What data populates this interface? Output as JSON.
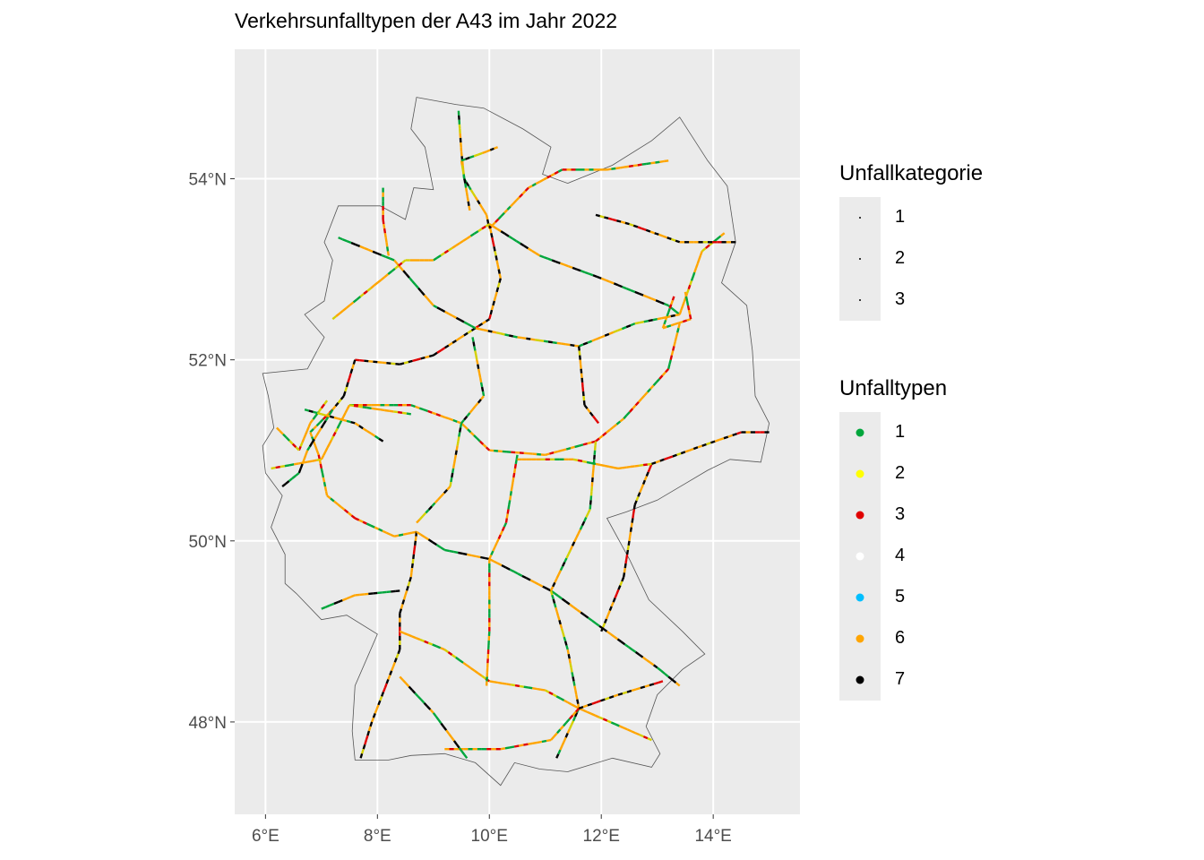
{
  "title": "Verkehrsunfalltypen der A43 im Jahr 2022",
  "map": {
    "x_ticks": [
      {
        "value": 6,
        "label": "6°E"
      },
      {
        "value": 8,
        "label": "8°E"
      },
      {
        "value": 10,
        "label": "10°E"
      },
      {
        "value": 12,
        "label": "12°E"
      },
      {
        "value": 14,
        "label": "14°E"
      }
    ],
    "y_ticks": [
      {
        "value": 48,
        "label": "48°N"
      },
      {
        "value": 50,
        "label": "50°N"
      },
      {
        "value": 52,
        "label": "52°N"
      },
      {
        "value": 54,
        "label": "54°N"
      }
    ],
    "xlim": [
      5.45,
      15.55
    ],
    "ylim": [
      46.98,
      55.43
    ],
    "grid": true,
    "panel_color": "#ebebeb",
    "border_color": "#555555",
    "border_outline": [
      [
        8.7,
        54.9
      ],
      [
        9.4,
        54.82
      ],
      [
        9.9,
        54.78
      ],
      [
        10.6,
        54.55
      ],
      [
        11.1,
        54.35
      ],
      [
        10.95,
        54.05
      ],
      [
        11.4,
        53.95
      ],
      [
        12.2,
        54.15
      ],
      [
        12.9,
        54.42
      ],
      [
        13.4,
        54.68
      ],
      [
        13.9,
        54.2
      ],
      [
        14.25,
        53.92
      ],
      [
        14.4,
        53.3
      ],
      [
        14.15,
        52.85
      ],
      [
        14.6,
        52.6
      ],
      [
        14.7,
        52.1
      ],
      [
        14.75,
        51.6
      ],
      [
        15.0,
        51.3
      ],
      [
        14.85,
        50.87
      ],
      [
        14.3,
        50.9
      ],
      [
        13.9,
        50.78
      ],
      [
        13.0,
        50.45
      ],
      [
        12.45,
        50.32
      ],
      [
        12.1,
        50.25
      ],
      [
        12.5,
        49.8
      ],
      [
        12.85,
        49.35
      ],
      [
        13.45,
        49.0
      ],
      [
        13.85,
        48.75
      ],
      [
        13.45,
        48.58
      ],
      [
        13.0,
        48.3
      ],
      [
        12.8,
        47.95
      ],
      [
        13.05,
        47.65
      ],
      [
        12.9,
        47.5
      ],
      [
        12.2,
        47.6
      ],
      [
        11.4,
        47.45
      ],
      [
        10.9,
        47.48
      ],
      [
        10.45,
        47.55
      ],
      [
        10.2,
        47.3
      ],
      [
        9.75,
        47.55
      ],
      [
        9.2,
        47.65
      ],
      [
        8.6,
        47.63
      ],
      [
        8.2,
        47.58
      ],
      [
        7.6,
        47.58
      ],
      [
        7.55,
        47.9
      ],
      [
        7.6,
        48.4
      ],
      [
        8.0,
        48.97
      ],
      [
        7.45,
        49.18
      ],
      [
        7.0,
        49.13
      ],
      [
        6.55,
        49.42
      ],
      [
        6.35,
        49.53
      ],
      [
        6.35,
        49.85
      ],
      [
        6.1,
        50.15
      ],
      [
        6.3,
        50.5
      ],
      [
        6.0,
        50.75
      ],
      [
        5.95,
        51.05
      ],
      [
        6.15,
        51.25
      ],
      [
        6.05,
        51.6
      ],
      [
        5.95,
        51.85
      ],
      [
        6.75,
        51.9
      ],
      [
        7.05,
        52.25
      ],
      [
        6.7,
        52.5
      ],
      [
        7.05,
        52.65
      ],
      [
        7.2,
        53.1
      ],
      [
        7.05,
        53.3
      ],
      [
        7.3,
        53.7
      ],
      [
        8.05,
        53.7
      ],
      [
        8.5,
        53.55
      ],
      [
        8.65,
        53.9
      ],
      [
        9.0,
        53.88
      ],
      [
        8.85,
        54.35
      ],
      [
        8.6,
        54.55
      ],
      [
        8.7,
        54.9
      ]
    ],
    "road_colors": [
      "#00a63c",
      "#ffa500",
      "#ffa500",
      "#d4d000",
      "#000000",
      "#ffa500",
      "#00a63c",
      "#e00000",
      "#ffa500",
      "#000000"
    ],
    "roads": [
      [
        [
          9.45,
          54.75
        ],
        [
          9.5,
          54.3
        ],
        [
          9.55,
          54.0
        ],
        [
          9.95,
          53.6
        ],
        [
          10.0,
          53.45
        ]
      ],
      [
        [
          10.0,
          53.45
        ],
        [
          10.7,
          53.9
        ],
        [
          11.3,
          54.1
        ],
        [
          12.1,
          54.1
        ],
        [
          13.2,
          54.2
        ]
      ],
      [
        [
          10.0,
          53.5
        ],
        [
          10.2,
          52.9
        ],
        [
          10.0,
          52.45
        ],
        [
          9.75,
          52.35
        ]
      ],
      [
        [
          10.0,
          53.5
        ],
        [
          10.9,
          53.15
        ],
        [
          12.0,
          52.9
        ],
        [
          13.2,
          52.6
        ],
        [
          13.4,
          52.5
        ]
      ],
      [
        [
          13.4,
          52.5
        ],
        [
          13.8,
          53.2
        ],
        [
          14.2,
          53.4
        ]
      ],
      [
        [
          13.4,
          52.5
        ],
        [
          12.6,
          52.4
        ],
        [
          11.6,
          52.15
        ],
        [
          10.5,
          52.25
        ],
        [
          9.75,
          52.35
        ]
      ],
      [
        [
          13.4,
          52.4
        ],
        [
          13.2,
          51.9
        ],
        [
          12.4,
          51.35
        ],
        [
          11.9,
          51.1
        ],
        [
          11.0,
          50.95
        ],
        [
          10.0,
          51.0
        ],
        [
          9.5,
          51.3
        ],
        [
          8.6,
          51.5
        ],
        [
          7.5,
          51.5
        ]
      ],
      [
        [
          9.75,
          52.35
        ],
        [
          9.0,
          52.05
        ],
        [
          8.4,
          51.95
        ],
        [
          7.6,
          52.0
        ],
        [
          7.4,
          51.6
        ],
        [
          7.2,
          51.45
        ]
      ],
      [
        [
          9.75,
          52.35
        ],
        [
          9.0,
          52.6
        ],
        [
          8.3,
          53.1
        ],
        [
          7.3,
          53.35
        ]
      ],
      [
        [
          10.0,
          53.5
        ],
        [
          9.0,
          53.1
        ],
        [
          8.5,
          53.1
        ],
        [
          7.2,
          52.45
        ]
      ],
      [
        [
          9.7,
          52.25
        ],
        [
          9.9,
          51.6
        ],
        [
          9.5,
          51.3
        ],
        [
          9.3,
          50.6
        ],
        [
          8.7,
          50.2
        ]
      ],
      [
        [
          7.2,
          51.45
        ],
        [
          6.8,
          51.2
        ],
        [
          6.95,
          50.95
        ],
        [
          7.1,
          50.5
        ],
        [
          7.6,
          50.25
        ],
        [
          8.3,
          50.05
        ],
        [
          8.7,
          50.1
        ]
      ],
      [
        [
          8.7,
          50.1
        ],
        [
          8.6,
          49.6
        ],
        [
          8.4,
          49.2
        ],
        [
          8.4,
          48.8
        ],
        [
          7.9,
          48.0
        ],
        [
          7.7,
          47.6
        ]
      ],
      [
        [
          8.7,
          50.1
        ],
        [
          9.2,
          49.9
        ],
        [
          10.0,
          49.8
        ],
        [
          11.1,
          49.45
        ],
        [
          12.1,
          49.0
        ],
        [
          13.0,
          48.6
        ],
        [
          13.4,
          48.4
        ]
      ],
      [
        [
          8.4,
          49.0
        ],
        [
          9.2,
          48.8
        ],
        [
          10.0,
          48.45
        ],
        [
          11.0,
          48.35
        ],
        [
          11.6,
          48.15
        ],
        [
          12.9,
          47.8
        ]
      ],
      [
        [
          11.6,
          48.15
        ],
        [
          11.4,
          48.8
        ],
        [
          11.1,
          49.45
        ],
        [
          11.8,
          50.35
        ],
        [
          11.9,
          51.1
        ]
      ],
      [
        [
          9.95,
          48.4
        ],
        [
          10.0,
          49.0
        ],
        [
          10.0,
          49.8
        ],
        [
          10.3,
          50.2
        ],
        [
          10.5,
          50.95
        ]
      ],
      [
        [
          12.0,
          49.0
        ],
        [
          12.4,
          49.6
        ],
        [
          12.6,
          50.4
        ],
        [
          12.9,
          50.85
        ],
        [
          13.8,
          51.05
        ],
        [
          14.5,
          51.2
        ],
        [
          15.0,
          51.2
        ]
      ],
      [
        [
          7.0,
          49.25
        ],
        [
          7.6,
          49.4
        ],
        [
          8.4,
          49.45
        ]
      ],
      [
        [
          6.1,
          50.8
        ],
        [
          7.0,
          50.9
        ],
        [
          7.5,
          51.5
        ],
        [
          8.6,
          51.4
        ]
      ],
      [
        [
          11.6,
          48.15
        ],
        [
          11.2,
          47.6
        ]
      ],
      [
        [
          11.6,
          48.15
        ],
        [
          11.1,
          47.8
        ],
        [
          10.2,
          47.7
        ],
        [
          9.2,
          47.7
        ]
      ],
      [
        [
          11.6,
          48.15
        ],
        [
          12.3,
          48.3
        ],
        [
          13.1,
          48.45
        ]
      ],
      [
        [
          8.4,
          48.5
        ],
        [
          9.0,
          48.1
        ],
        [
          9.6,
          47.6
        ]
      ],
      [
        [
          10.5,
          50.9
        ],
        [
          11.5,
          50.9
        ],
        [
          12.3,
          50.8
        ],
        [
          12.9,
          50.85
        ]
      ],
      [
        [
          9.65,
          53.65
        ],
        [
          9.5,
          54.2
        ],
        [
          9.95,
          54.3
        ],
        [
          10.15,
          54.35
        ]
      ],
      [
        [
          8.2,
          53.15
        ],
        [
          8.1,
          53.55
        ],
        [
          8.1,
          53.9
        ]
      ],
      [
        [
          11.6,
          52.15
        ],
        [
          11.7,
          51.5
        ],
        [
          11.95,
          51.3
        ]
      ],
      [
        [
          7.2,
          51.45
        ],
        [
          6.75,
          51.0
        ],
        [
          6.6,
          50.75
        ],
        [
          6.3,
          50.6
        ]
      ],
      [
        [
          7.1,
          51.55
        ],
        [
          6.8,
          51.3
        ],
        [
          6.6,
          51.0
        ],
        [
          6.2,
          51.25
        ]
      ],
      [
        [
          6.7,
          51.45
        ],
        [
          7.6,
          51.3
        ],
        [
          8.1,
          51.1
        ]
      ],
      [
        [
          13.3,
          52.7
        ],
        [
          13.1,
          52.35
        ],
        [
          13.6,
          52.45
        ],
        [
          13.5,
          52.75
        ]
      ],
      [
        [
          14.4,
          53.3
        ],
        [
          13.4,
          53.3
        ],
        [
          12.5,
          53.5
        ],
        [
          11.9,
          53.6
        ]
      ]
    ]
  },
  "legends": [
    {
      "title": "Unfallkategorie",
      "items": [
        {
          "label": "1",
          "color": "#000000",
          "size": 2
        },
        {
          "label": "2",
          "color": "#000000",
          "size": 2
        },
        {
          "label": "3",
          "color": "#000000",
          "size": 2
        }
      ]
    },
    {
      "title": "Unfalltypen",
      "items": [
        {
          "label": "1",
          "color": "#00a63c",
          "size": 9
        },
        {
          "label": "2",
          "color": "#ffff00",
          "size": 9
        },
        {
          "label": "3",
          "color": "#e00000",
          "size": 9
        },
        {
          "label": "4",
          "color": "#ffffff",
          "size": 9
        },
        {
          "label": "5",
          "color": "#00bfff",
          "size": 9
        },
        {
          "label": "6",
          "color": "#ffa500",
          "size": 9
        },
        {
          "label": "7",
          "color": "#000000",
          "size": 9
        }
      ]
    }
  ]
}
